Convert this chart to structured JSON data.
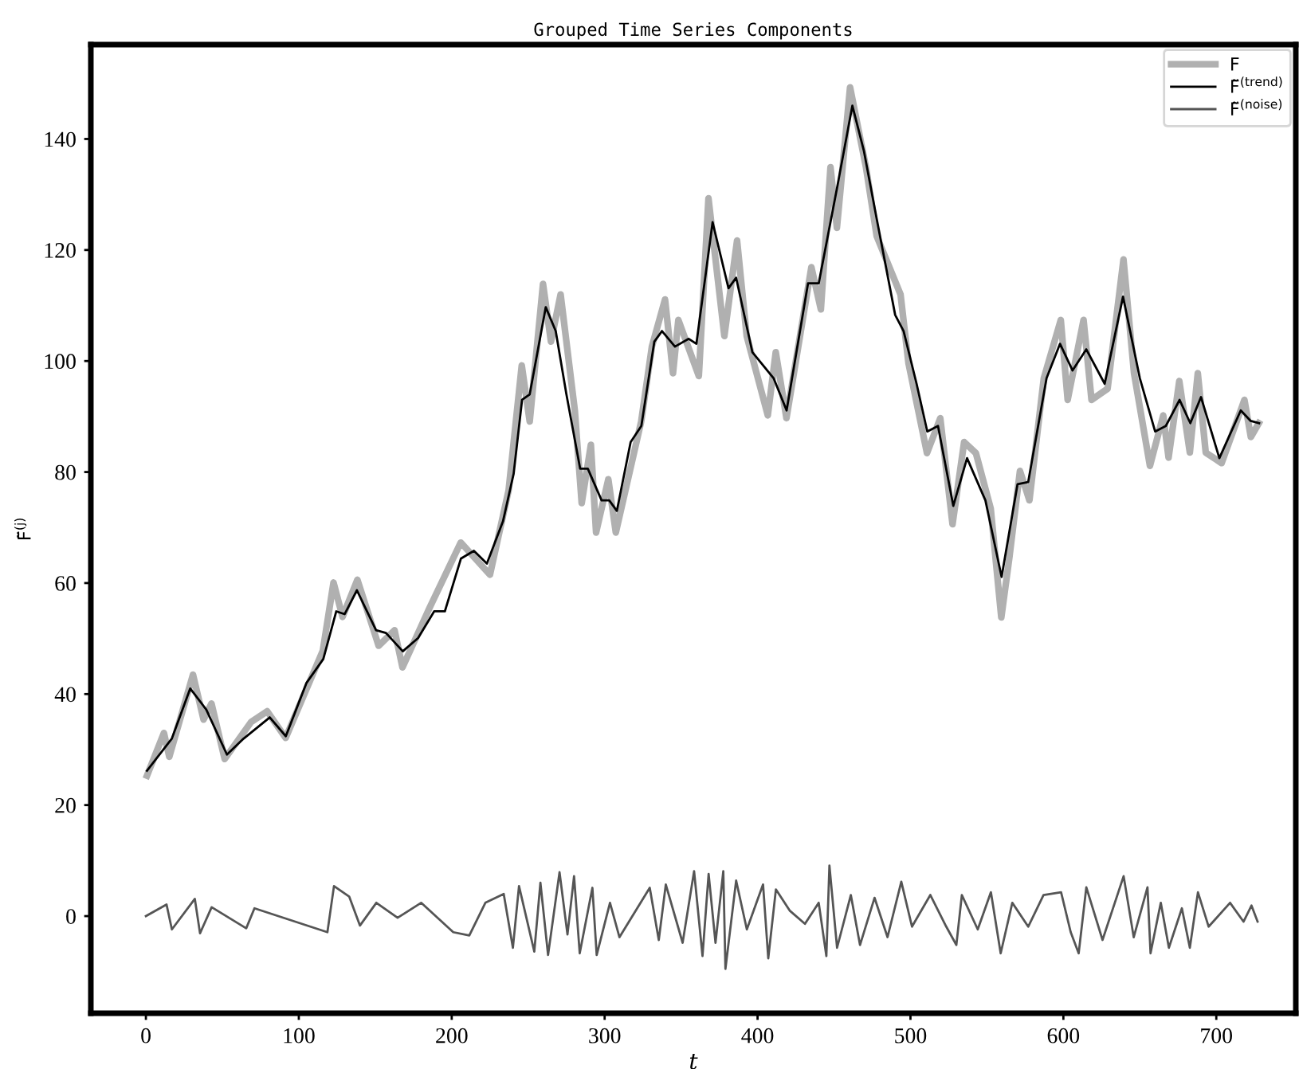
{
  "chart_data": {
    "type": "line",
    "title": "Grouped Time Series Components",
    "xlabel": "t",
    "ylabel": "F̃$^{(j)}$",
    "xlim": [
      -36,
      752
    ],
    "ylim": [
      -17.5,
      157
    ],
    "xticks": [
      0,
      100,
      200,
      300,
      400,
      500,
      600,
      700
    ],
    "yticks": [
      0,
      20,
      40,
      60,
      80,
      100,
      120,
      140
    ],
    "grid": false,
    "legend": "top right",
    "series": [
      {
        "name": "F",
        "color": "#b0b0b0",
        "x": [
          0.7,
          11.8,
          15.3,
          30.8,
          37.7,
          42.9,
          51.5,
          68.9,
          79.3,
          91.4,
          115.7,
          122.7,
          128.6,
          138.3,
          152.2,
          162.6,
          167.8,
          185.1,
          205.9,
          225,
          237.2,
          245.8,
          251,
          259.7,
          264.9,
          271.2,
          280.5,
          285,
          291,
          294.4,
          302.4,
          307.3,
          323.9,
          330.9,
          339.5,
          344.7,
          348.2,
          361.6,
          367.9,
          378.3,
          386.6,
          392.9,
          406.7,
          411.9,
          418.9,
          435.2,
          441.4,
          447.7,
          451.9,
          460.5,
          470.9,
          477.9,
          493.5,
          498.7,
          510.8,
          519.5,
          527.5,
          535.1,
          542.8,
          552.5,
          559.4,
          564.6,
          571.6,
          577.8,
          587.2,
          598.3,
          602.8,
          613.2,
          618.4,
          628.9,
          639.3,
          646.2,
          656.6,
          665.3,
          668.8,
          675.8,
          682.7,
          687.9,
          693.1,
          703.5,
          718.4,
          722.6,
          727.8
        ],
        "values": [
          25.3,
          33,
          28.7,
          43.5,
          35.4,
          38.3,
          28.3,
          35,
          36.9,
          32.1,
          47.8,
          60.1,
          53.9,
          60.6,
          48.7,
          51.5,
          44.8,
          55.3,
          67.3,
          61.5,
          76.7,
          99.2,
          89.1,
          113.9,
          103.5,
          112,
          91.1,
          74.4,
          84.9,
          69.1,
          78.7,
          69.1,
          89.1,
          102.6,
          111.1,
          97.8,
          107.4,
          97.3,
          129.3,
          104.5,
          121.7,
          104.5,
          90.2,
          101.6,
          89.7,
          116.9,
          109.3,
          134.9,
          124,
          149.3,
          134.9,
          122.5,
          112,
          99.6,
          83.4,
          89.7,
          70.6,
          85.4,
          83.4,
          73.4,
          53.8,
          64.4,
          80.2,
          74.9,
          96.9,
          107.4,
          93,
          107.4,
          93,
          95,
          118.3,
          97.8,
          81.1,
          90.2,
          82.6,
          96.4,
          83.5,
          97.8,
          83.5,
          81.6,
          93,
          86.3,
          88.8
        ]
      },
      {
        "name": "F̃$^{(trend)}$",
        "color": "#000000",
        "x": [
          0.7,
          17,
          29,
          39.5,
          53,
          64,
          81,
          91.5,
          105,
          116,
          124.5,
          130,
          138,
          150.5,
          157,
          168,
          178,
          188.5,
          195.5,
          206,
          214.5,
          223,
          233.5,
          240.5,
          246,
          251,
          261.5,
          268,
          275,
          284,
          289,
          298,
          303,
          308,
          317,
          324,
          332.5,
          337.5,
          346,
          355,
          360,
          370.6,
          381,
          386,
          396.6,
          410.5,
          419,
          433,
          440,
          452,
          462,
          469.5,
          478,
          490,
          495.5,
          504,
          511,
          518,
          528,
          537,
          549,
          559.6,
          570,
          577,
          589,
          597.8,
          606,
          615,
          627,
          639,
          650,
          660,
          667,
          676,
          683,
          690,
          702,
          716,
          722.5,
          728
        ],
        "values": [
          26.2,
          32,
          41,
          37.2,
          29.1,
          32,
          35.8,
          32.4,
          42,
          46.3,
          54.9,
          54.4,
          58.7,
          51.5,
          51,
          47.7,
          50.1,
          54.9,
          54.9,
          64.4,
          65.8,
          63.5,
          71.1,
          79.7,
          93,
          94,
          109.7,
          105.4,
          94,
          80.6,
          80.6,
          74.9,
          74.9,
          73,
          85.4,
          88.3,
          103.5,
          105.4,
          102.6,
          104,
          103.1,
          125,
          113.1,
          115,
          101.6,
          96.9,
          91.1,
          114,
          114,
          131.2,
          146,
          137.9,
          125.5,
          108.3,
          105.4,
          95.9,
          87.3,
          88.3,
          73.9,
          82.5,
          74.9,
          61.1,
          77.8,
          78.2,
          96.9,
          103.1,
          98.3,
          102.1,
          95.9,
          111.6,
          96.9,
          87.3,
          88.3,
          93,
          88.8,
          93.5,
          82.5,
          91.1,
          89.2,
          88.8
        ]
      },
      {
        "name": "F̃$^{(noise)}$",
        "color": "#555555",
        "x": [
          0,
          13.5,
          17,
          32,
          35.4,
          43,
          65.6,
          71,
          118.7,
          123,
          133,
          140,
          150.7,
          164.6,
          180,
          201,
          211.5,
          222,
          234,
          240,
          244,
          254,
          258,
          263,
          270.5,
          275.7,
          280,
          283.7,
          292,
          294.8,
          303.5,
          309.7,
          329.5,
          335.4,
          340,
          351,
          358.5,
          364,
          368,
          372.5,
          377.6,
          379,
          386,
          393,
          403.6,
          407,
          412,
          421,
          431,
          440,
          445,
          447,
          452,
          461,
          467,
          476.5,
          485,
          494,
          501,
          513,
          523.4,
          530,
          533.6,
          544,
          552.6,
          559,
          566.6,
          577,
          587,
          598.5,
          604.8,
          610,
          615,
          625.6,
          639.4,
          646,
          655,
          657,
          663.7,
          669,
          677.5,
          682.7,
          688,
          695,
          709,
          717.8,
          723,
          727
        ],
        "values": [
          0,
          2.1,
          -2.4,
          3.1,
          -3.1,
          1.6,
          -2.2,
          1.4,
          -2.9,
          5.4,
          3.5,
          -1.7,
          2.4,
          -0.3,
          2.4,
          -2.9,
          -3.5,
          2.4,
          4,
          -5.7,
          5.4,
          -6.4,
          6,
          -7,
          7.9,
          -3.3,
          7.2,
          -6.7,
          5.1,
          -7,
          2.4,
          -3.8,
          5.1,
          -4.3,
          5.7,
          -4.8,
          8.1,
          -7.2,
          7.6,
          -4.8,
          8.1,
          -9.5,
          6.4,
          -2.4,
          5.7,
          -7.6,
          4.8,
          1,
          -1.4,
          2.4,
          -7.2,
          9.1,
          -5.7,
          3.8,
          -5.2,
          3.3,
          -3.8,
          6.2,
          -1.9,
          3.8,
          -1.9,
          -5.2,
          3.8,
          -2.4,
          4.3,
          -6.7,
          2.4,
          -1.9,
          3.8,
          4.3,
          -2.9,
          -6.7,
          5.2,
          -4.3,
          7.2,
          -3.8,
          5.2,
          -6.7,
          2.4,
          -5.7,
          1.4,
          -5.7,
          4.3,
          -1.9,
          2.4,
          -1,
          1.9,
          -1
        ]
      }
    ]
  }
}
